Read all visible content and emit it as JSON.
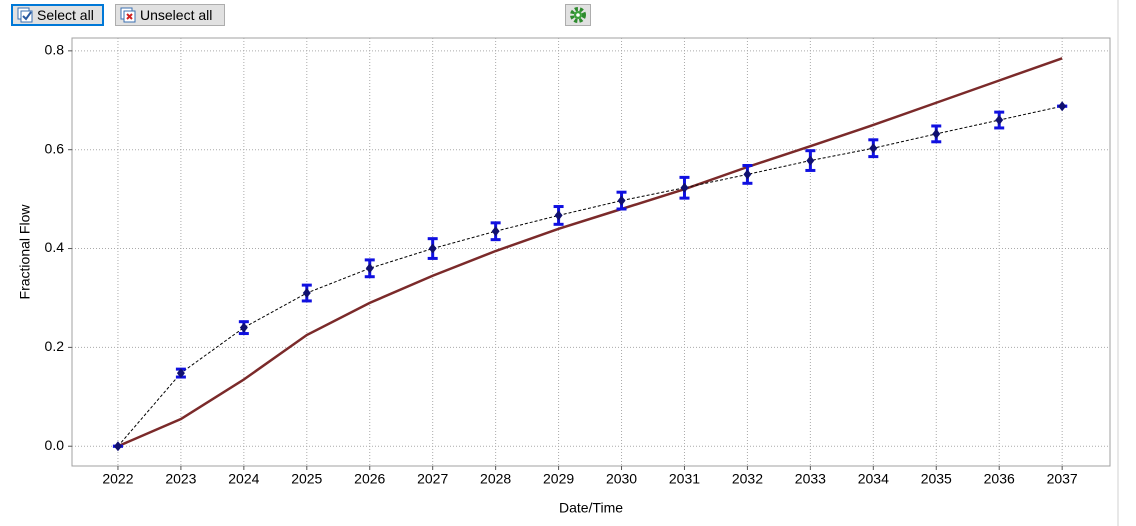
{
  "toolbar": {
    "buttons": [
      "Select all",
      "Unselect all"
    ]
  },
  "chart_data": {
    "type": "line",
    "x_label": "Date/Time",
    "y_label": "Fractional Flow",
    "x": [
      2022,
      2023,
      2024,
      2025,
      2026,
      2027,
      2028,
      2029,
      2030,
      2031,
      2032,
      2033,
      2034,
      2035,
      2036,
      2037
    ],
    "series": [
      {
        "color": "#000000",
        "marker_color": "#1010e0",
        "dashed": true,
        "values": [
          0,
          0.148,
          0.24,
          0.31,
          0.36,
          0.4,
          0.435,
          0.467,
          0.497,
          0.523,
          0.55,
          0.578,
          0.603,
          0.632,
          0.66,
          0.688
        ],
        "errors": [
          0,
          0.008,
          0.012,
          0.016,
          0.017,
          0.02,
          0.017,
          0.018,
          0.017,
          0.021,
          0.018,
          0.02,
          0.017,
          0.016,
          0.016,
          0
        ]
      },
      {
        "color": "#7b2a2a",
        "dashed": false,
        "values": [
          0,
          0.055,
          0.135,
          0.225,
          0.29,
          0.345,
          0.395,
          0.44,
          0.48,
          0.52,
          0.565,
          0.607,
          0.65,
          0.695,
          0.74,
          0.785
        ]
      }
    ],
    "xlim": [
      2021.27,
      2037.76
    ],
    "xticks": [
      2022,
      2023,
      2024,
      2025,
      2026,
      2027,
      2028,
      2029,
      2030,
      2031,
      2032,
      2033,
      2034,
      2035,
      2036,
      2037
    ],
    "ylim": [
      -0.04,
      0.826
    ],
    "yticks": [
      {
        "value": 0,
        "label": "0.0"
      },
      0.2,
      0.4,
      0.6,
      0.8
    ],
    "grid": true
  }
}
